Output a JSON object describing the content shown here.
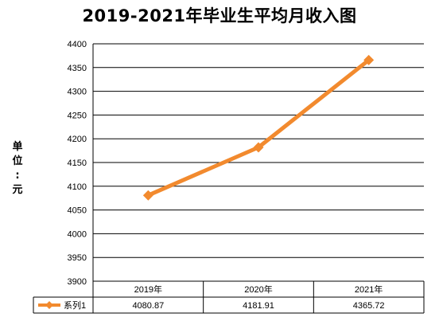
{
  "chart_data": {
    "type": "line",
    "title": "2019-2021年毕业生平均月收入图",
    "ylabel": "单位：元",
    "ylim": [
      3900,
      4400
    ],
    "yticks": [
      3900,
      3950,
      4000,
      4050,
      4100,
      4150,
      4200,
      4250,
      4300,
      4350,
      4400
    ],
    "grid": true,
    "categories": [
      "2019年",
      "2020年",
      "2021年"
    ],
    "series": [
      {
        "name": "系列1",
        "color": "#f28a2e",
        "values": [
          4080.87,
          4181.91,
          4365.72
        ],
        "value_labels": [
          "4080.87",
          "4181.91",
          "4365.72"
        ]
      }
    ],
    "legend": "data-table-left"
  }
}
